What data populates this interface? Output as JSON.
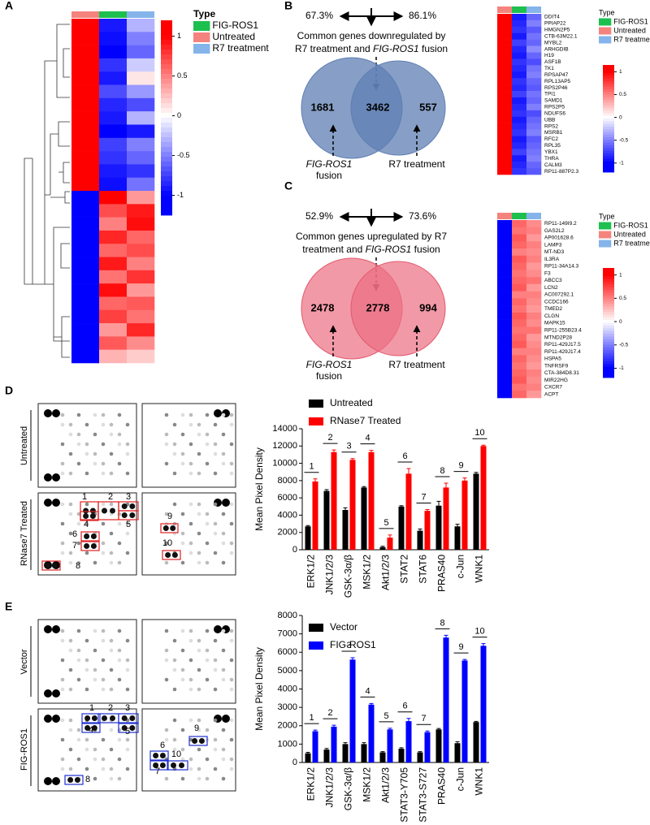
{
  "panel_labels": [
    "A",
    "B",
    "C",
    "D",
    "E"
  ],
  "chart_data": [
    {
      "type": "heatmap",
      "legend_title": "Type",
      "legend": [
        {
          "name": "FIG-ROS1",
          "color": "#1dbf4f"
        },
        {
          "name": "Untreated",
          "color": "#f4837d"
        },
        {
          "name": "R7 treatment",
          "color": "#84b4ea"
        }
      ],
      "column_colors": [
        "#f4837d",
        "#1dbf4f",
        "#84b4ea"
      ],
      "clim": [
        -1.25,
        1.2
      ],
      "cticks": [
        1,
        0.5,
        0,
        -0.5,
        -1
      ],
      "values": [
        [
          1,
          -0.9,
          -0.3
        ],
        [
          1,
          -0.95,
          -0.5
        ],
        [
          1,
          -1,
          -0.6
        ],
        [
          1,
          -0.8,
          -0.2
        ],
        [
          1,
          -0.9,
          0.1
        ],
        [
          1,
          -0.7,
          -0.4
        ],
        [
          1,
          -0.85,
          -0.7
        ],
        [
          1,
          -0.9,
          -0.3
        ],
        [
          1,
          -1,
          -0.9
        ],
        [
          1,
          -0.75,
          -0.5
        ],
        [
          1,
          -0.8,
          -0.6
        ],
        [
          1,
          -0.9,
          -0.8
        ],
        [
          1,
          -0.95,
          -0.55
        ],
        [
          -1,
          1,
          0.4
        ],
        [
          -1,
          0.7,
          0.9
        ],
        [
          -1,
          0.5,
          0.95
        ],
        [
          -1,
          0.85,
          0.6
        ],
        [
          -1,
          0.6,
          0.7
        ],
        [
          -1,
          0.9,
          0.5
        ],
        [
          -1,
          0.55,
          0.8
        ],
        [
          -1,
          0.95,
          0.4
        ],
        [
          -1,
          0.6,
          0.65
        ],
        [
          -1,
          0.75,
          0.55
        ],
        [
          -1,
          0.4,
          0.85
        ],
        [
          -1,
          0.65,
          0.45
        ],
        [
          -1,
          0.3,
          0.2
        ]
      ]
    },
    {
      "type": "heatmap",
      "legend_title": "Type",
      "legend": [
        {
          "name": "FIG-ROS1",
          "color": "#1dbf4f"
        },
        {
          "name": "Untreated",
          "color": "#f4837d"
        },
        {
          "name": "R7 treatment",
          "color": "#84b4ea"
        }
      ],
      "column_colors": [
        "#f4837d",
        "#1dbf4f",
        "#84b4ea"
      ],
      "clim": [
        -1.2,
        1.15
      ],
      "cticks": [
        1,
        0.5,
        0,
        -0.5,
        -1
      ],
      "row_labels": [
        "DDIT4",
        "PPIAP22",
        "HMGN2P5",
        "CTB-63M22.1",
        "MYBL2",
        "ARHGDIB",
        "H19",
        "ASF1B",
        "TK1",
        "RPSAP47",
        "RPL13AP5",
        "RPS2P46",
        "TPI1",
        "SAMD1",
        "RPS2P5",
        "NDUFS6",
        "UBB",
        "RPS2",
        "MSRB1",
        "RFC2",
        "RPL35",
        "YBX1",
        "THRA",
        "CALM3",
        "RP11-887P2.3"
      ],
      "values": [
        [
          1,
          -0.9,
          -0.6
        ],
        [
          1,
          -0.85,
          -0.5
        ],
        [
          1,
          -0.8,
          -0.65
        ],
        [
          1,
          -0.9,
          -0.55
        ],
        [
          1,
          -0.75,
          -0.6
        ],
        [
          1,
          -0.85,
          -0.45
        ],
        [
          1,
          -0.9,
          -0.6
        ],
        [
          1,
          -0.8,
          -0.7
        ],
        [
          1,
          -0.85,
          -0.55
        ],
        [
          1,
          -0.9,
          -0.5
        ],
        [
          1,
          -0.8,
          -0.6
        ],
        [
          1,
          -0.85,
          -0.65
        ],
        [
          1,
          -0.75,
          -0.55
        ],
        [
          1,
          -0.9,
          -0.6
        ],
        [
          1,
          -0.85,
          -0.5
        ],
        [
          1,
          -0.8,
          -0.7
        ],
        [
          1,
          -0.9,
          -0.6
        ],
        [
          1,
          -0.85,
          -0.55
        ],
        [
          1,
          -0.8,
          -0.5
        ],
        [
          1,
          -0.9,
          -0.65
        ],
        [
          1,
          -0.85,
          -0.6
        ],
        [
          1,
          -0.75,
          -0.55
        ],
        [
          1,
          -0.9,
          -0.5
        ],
        [
          1,
          -0.85,
          -0.6
        ],
        [
          1,
          -0.8,
          -0.65
        ]
      ]
    },
    {
      "type": "heatmap",
      "legend_title": "Type",
      "legend": [
        {
          "name": "FIG-ROS1",
          "color": "#1dbf4f"
        },
        {
          "name": "Untreated",
          "color": "#f4837d"
        },
        {
          "name": "R7 treatment",
          "color": "#84b4ea"
        }
      ],
      "column_colors": [
        "#f4837d",
        "#1dbf4f",
        "#84b4ea"
      ],
      "clim": [
        -1.2,
        1.15
      ],
      "cticks": [
        1,
        0.5,
        0,
        -0.5,
        -1
      ],
      "row_labels": [
        "RP11-149I9.2",
        "GAS2L2",
        "AP001628.6",
        "LAMP3",
        "MT-ND3",
        "IL3RA",
        "RP11-34A14.3",
        "F3",
        "ABCC3",
        "LCN2",
        "AC007292.1",
        "CCDC166",
        "TMED2",
        "CLGN",
        "MAPK15",
        "RP11-255B23.4",
        "MTND2P28",
        "RP11-429J17.5",
        "RP11-429J17.4",
        "HSPA5",
        "TNFRSF9",
        "CTA-384D8.31",
        "MIR22HG",
        "CXCR7",
        "ACPT"
      ],
      "values": [
        [
          -1,
          0.6,
          0.45
        ],
        [
          -1,
          0.55,
          0.5
        ],
        [
          -1,
          0.65,
          0.4
        ],
        [
          -1,
          0.6,
          0.5
        ],
        [
          -1,
          0.5,
          0.45
        ],
        [
          -1,
          0.65,
          0.5
        ],
        [
          -1,
          0.6,
          0.4
        ],
        [
          -1,
          0.55,
          0.45
        ],
        [
          -1,
          0.6,
          0.55
        ],
        [
          -1,
          0.65,
          0.4
        ],
        [
          -1,
          0.5,
          0.5
        ],
        [
          -1,
          0.6,
          0.45
        ],
        [
          -1,
          0.55,
          0.4
        ],
        [
          -1,
          0.65,
          0.5
        ],
        [
          -1,
          0.6,
          0.45
        ],
        [
          -1,
          0.55,
          0.55
        ],
        [
          -1,
          0.6,
          0.4
        ],
        [
          -1,
          0.65,
          0.45
        ],
        [
          -1,
          0.5,
          0.5
        ],
        [
          -1,
          0.6,
          0.45
        ],
        [
          -1,
          0.55,
          0.4
        ],
        [
          -1,
          0.6,
          0.5
        ],
        [
          -1,
          0.65,
          0.45
        ],
        [
          -1,
          0.55,
          0.5
        ],
        [
          -1,
          0.6,
          0.4
        ]
      ]
    },
    {
      "type": "bar",
      "ylabel": "Mean Pixel Density",
      "categories": [
        "ERK1/2",
        "JNK1/2/3",
        "GSK-3α/β",
        "MSK1/2",
        "Akt1/2/3",
        "STAT2",
        "STAT6",
        "PRAS40",
        "c-Jun",
        "WNK1"
      ],
      "category_colors": [
        "#000",
        "#000",
        "#000",
        "#000",
        "#000",
        "#e8141b",
        "#e8141b",
        "#000",
        "#000",
        "#000"
      ],
      "bracket_labels": [
        "1",
        "2",
        "3",
        "4",
        "5",
        "6",
        "7",
        "8",
        "9",
        "10"
      ],
      "series": [
        {
          "name": "Untreated",
          "color": "#000000",
          "values": [
            2700,
            6800,
            4600,
            7200,
            300,
            5000,
            2200,
            5100,
            2700,
            8800
          ],
          "errors": [
            100,
            150,
            250,
            100,
            100,
            100,
            200,
            500,
            250,
            150
          ]
        },
        {
          "name": "RNase7 Treated",
          "color": "#ff0000",
          "values": [
            7900,
            11300,
            10400,
            11300,
            1400,
            8800,
            4500,
            7200,
            8000,
            12000
          ],
          "errors": [
            300,
            250,
            150,
            200,
            300,
            600,
            150,
            500,
            300,
            100
          ]
        }
      ],
      "ylim": [
        0,
        14000
      ],
      "yticks": [
        0,
        2000,
        4000,
        6000,
        8000,
        10000,
        12000,
        14000
      ]
    },
    {
      "type": "bar",
      "ylabel": "Mean Pixel Density",
      "categories": [
        "ERK1/2",
        "JNK1/2/3",
        "GSK-3α/β",
        "MSK1/2",
        "Akt1/2/3",
        "STAT3-Y705",
        "STAT3-S727",
        "PRAS40",
        "c-Jun",
        "WNK1"
      ],
      "category_colors": [
        "#000",
        "#000",
        "#000",
        "#000",
        "#000",
        "#1a1ad8",
        "#1a1ad8",
        "#000",
        "#000",
        "#000"
      ],
      "bracket_labels": [
        "1",
        "2",
        "3",
        "4",
        "5",
        "6",
        "7",
        "8",
        "9",
        "10"
      ],
      "series": [
        {
          "name": "Vector",
          "color": "#000000",
          "values": [
            500,
            700,
            1000,
            1000,
            550,
            750,
            550,
            1800,
            1050,
            2200
          ],
          "errors": [
            50,
            60,
            80,
            80,
            40,
            50,
            40,
            50,
            80,
            40
          ]
        },
        {
          "name": "FIG-ROS1",
          "color": "#0000ff",
          "values": [
            1700,
            1950,
            5600,
            3150,
            1800,
            2250,
            1650,
            6800,
            5550,
            6350
          ],
          "errors": [
            60,
            80,
            100,
            60,
            60,
            150,
            60,
            120,
            60,
            120
          ]
        }
      ],
      "ylim": [
        0,
        8000
      ],
      "yticks": [
        0,
        1000,
        2000,
        3000,
        4000,
        5000,
        6000,
        7000,
        8000
      ]
    }
  ],
  "venn": [
    {
      "left_pct": "67.3%",
      "right_pct": "86.1%",
      "line1": "Common genes downregulated by",
      "line2a": "R7 treatment and ",
      "line2b": "FIG-ROS1",
      "line2c": " fusion",
      "left": "1681",
      "both": "3462",
      "right": "557",
      "left_label": "FIG-ROS1",
      "left_label2": "fusion",
      "right_label": "R7 treatment"
    },
    {
      "left_pct": "52.9%",
      "right_pct": "73.6%",
      "line1": "Common genes upregulated by R7",
      "line2a": "treatment and ",
      "line2b": "FIG-ROS1",
      "line2c": " fusion",
      "left": "2478",
      "both": "2778",
      "right": "994",
      "left_label": "FIG-ROS1",
      "left_label2": "fusion",
      "right_label": "R7 treatment"
    }
  ],
  "blots": [
    {
      "top_label": "Untreated",
      "bottom_label": "RNase7 Treated",
      "spot_labels": [
        "1",
        "2",
        "3",
        "4",
        "5",
        "6",
        "7",
        "8",
        "9",
        "10"
      ]
    },
    {
      "top_label": "Vector",
      "bottom_label": "FIG-ROS1",
      "spot_labels": [
        "1",
        "2",
        "3",
        "4",
        "5",
        "6",
        "7",
        "8",
        "9",
        "10"
      ]
    }
  ]
}
